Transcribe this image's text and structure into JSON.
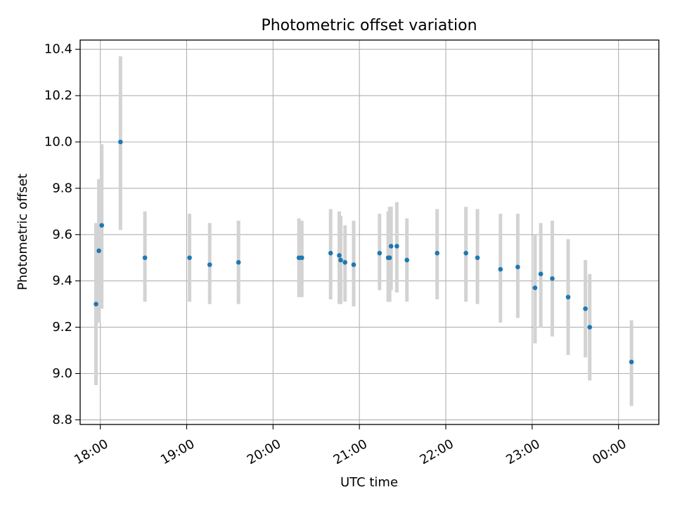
{
  "chart_data": {
    "type": "scatter",
    "title": "Photometric offset variation",
    "xlabel": "UTC time",
    "ylabel": "Photometric offset",
    "grid": true,
    "x_axis_type": "time",
    "xlim": [
      "2023-01-01T17:46",
      "2023-01-02T00:28"
    ],
    "ylim": [
      8.78,
      10.44
    ],
    "x_ticks": [
      {
        "t": "2023-01-01T18:00",
        "label": "18:00"
      },
      {
        "t": "2023-01-01T19:00",
        "label": "19:00"
      },
      {
        "t": "2023-01-01T20:00",
        "label": "20:00"
      },
      {
        "t": "2023-01-01T21:00",
        "label": "21:00"
      },
      {
        "t": "2023-01-01T22:00",
        "label": "22:00"
      },
      {
        "t": "2023-01-01T23:00",
        "label": "23:00"
      },
      {
        "t": "2023-01-02T00:00",
        "label": "00:00"
      }
    ],
    "y_ticks": [
      {
        "v": 8.8,
        "label": "8.8"
      },
      {
        "v": 9.0,
        "label": "9.0"
      },
      {
        "v": 9.2,
        "label": "9.2"
      },
      {
        "v": 9.4,
        "label": "9.4"
      },
      {
        "v": 9.6,
        "label": "9.6"
      },
      {
        "v": 9.8,
        "label": "9.8"
      },
      {
        "v": 10.0,
        "label": "10.0"
      },
      {
        "v": 10.2,
        "label": "10.2"
      },
      {
        "v": 10.4,
        "label": "10.4"
      }
    ],
    "colors": {
      "point": "#1f77b4",
      "errorbar": "#d3d3d3",
      "grid": "#b0b0b0"
    },
    "series": [
      {
        "points": [
          {
            "t": "2023-01-01T17:57",
            "y": 9.3,
            "ylo": 8.95,
            "yhi": 9.65
          },
          {
            "t": "2023-01-01T17:59",
            "y": 9.53,
            "ylo": 9.22,
            "yhi": 9.84
          },
          {
            "t": "2023-01-01T18:01",
            "y": 9.64,
            "ylo": 9.28,
            "yhi": 9.99
          },
          {
            "t": "2023-01-01T18:14",
            "y": 10.0,
            "ylo": 9.62,
            "yhi": 10.37
          },
          {
            "t": "2023-01-01T18:31",
            "y": 9.5,
            "ylo": 9.31,
            "yhi": 9.7
          },
          {
            "t": "2023-01-01T19:02",
            "y": 9.5,
            "ylo": 9.31,
            "yhi": 9.69
          },
          {
            "t": "2023-01-01T19:16",
            "y": 9.47,
            "ylo": 9.3,
            "yhi": 9.65
          },
          {
            "t": "2023-01-01T19:36",
            "y": 9.48,
            "ylo": 9.3,
            "yhi": 9.66
          },
          {
            "t": "2023-01-01T20:18",
            "y": 9.5,
            "ylo": 9.33,
            "yhi": 9.67
          },
          {
            "t": "2023-01-01T20:20",
            "y": 9.5,
            "ylo": 9.33,
            "yhi": 9.66
          },
          {
            "t": "2023-01-01T20:40",
            "y": 9.52,
            "ylo": 9.32,
            "yhi": 9.71
          },
          {
            "t": "2023-01-01T20:46",
            "y": 9.51,
            "ylo": 9.3,
            "yhi": 9.7
          },
          {
            "t": "2023-01-01T20:47",
            "y": 9.49,
            "ylo": 9.3,
            "yhi": 9.68
          },
          {
            "t": "2023-01-01T20:50",
            "y": 9.48,
            "ylo": 9.31,
            "yhi": 9.64
          },
          {
            "t": "2023-01-01T20:56",
            "y": 9.47,
            "ylo": 9.29,
            "yhi": 9.66
          },
          {
            "t": "2023-01-01T21:14",
            "y": 9.52,
            "ylo": 9.36,
            "yhi": 9.69
          },
          {
            "t": "2023-01-01T21:20",
            "y": 9.5,
            "ylo": 9.31,
            "yhi": 9.7
          },
          {
            "t": "2023-01-01T21:21",
            "y": 9.5,
            "ylo": 9.31,
            "yhi": 9.72
          },
          {
            "t": "2023-01-01T21:22",
            "y": 9.55,
            "ylo": 9.36,
            "yhi": 9.72
          },
          {
            "t": "2023-01-01T21:26",
            "y": 9.55,
            "ylo": 9.35,
            "yhi": 9.74
          },
          {
            "t": "2023-01-01T21:33",
            "y": 9.49,
            "ylo": 9.31,
            "yhi": 9.67
          },
          {
            "t": "2023-01-01T21:54",
            "y": 9.52,
            "ylo": 9.32,
            "yhi": 9.71
          },
          {
            "t": "2023-01-01T22:14",
            "y": 9.52,
            "ylo": 9.31,
            "yhi": 9.72
          },
          {
            "t": "2023-01-01T22:22",
            "y": 9.5,
            "ylo": 9.3,
            "yhi": 9.71
          },
          {
            "t": "2023-01-01T22:38",
            "y": 9.45,
            "ylo": 9.22,
            "yhi": 9.69
          },
          {
            "t": "2023-01-01T22:50",
            "y": 9.46,
            "ylo": 9.24,
            "yhi": 9.69
          },
          {
            "t": "2023-01-01T23:02",
            "y": 9.37,
            "ylo": 9.13,
            "yhi": 9.6
          },
          {
            "t": "2023-01-01T23:06",
            "y": 9.43,
            "ylo": 9.2,
            "yhi": 9.65
          },
          {
            "t": "2023-01-01T23:14",
            "y": 9.41,
            "ylo": 9.16,
            "yhi": 9.66
          },
          {
            "t": "2023-01-01T23:25",
            "y": 9.33,
            "ylo": 9.08,
            "yhi": 9.58
          },
          {
            "t": "2023-01-01T23:37",
            "y": 9.28,
            "ylo": 9.07,
            "yhi": 9.49
          },
          {
            "t": "2023-01-01T23:40",
            "y": 9.2,
            "ylo": 8.97,
            "yhi": 9.43
          },
          {
            "t": "2023-01-02T00:09",
            "y": 9.05,
            "ylo": 8.86,
            "yhi": 9.23
          }
        ]
      }
    ]
  }
}
